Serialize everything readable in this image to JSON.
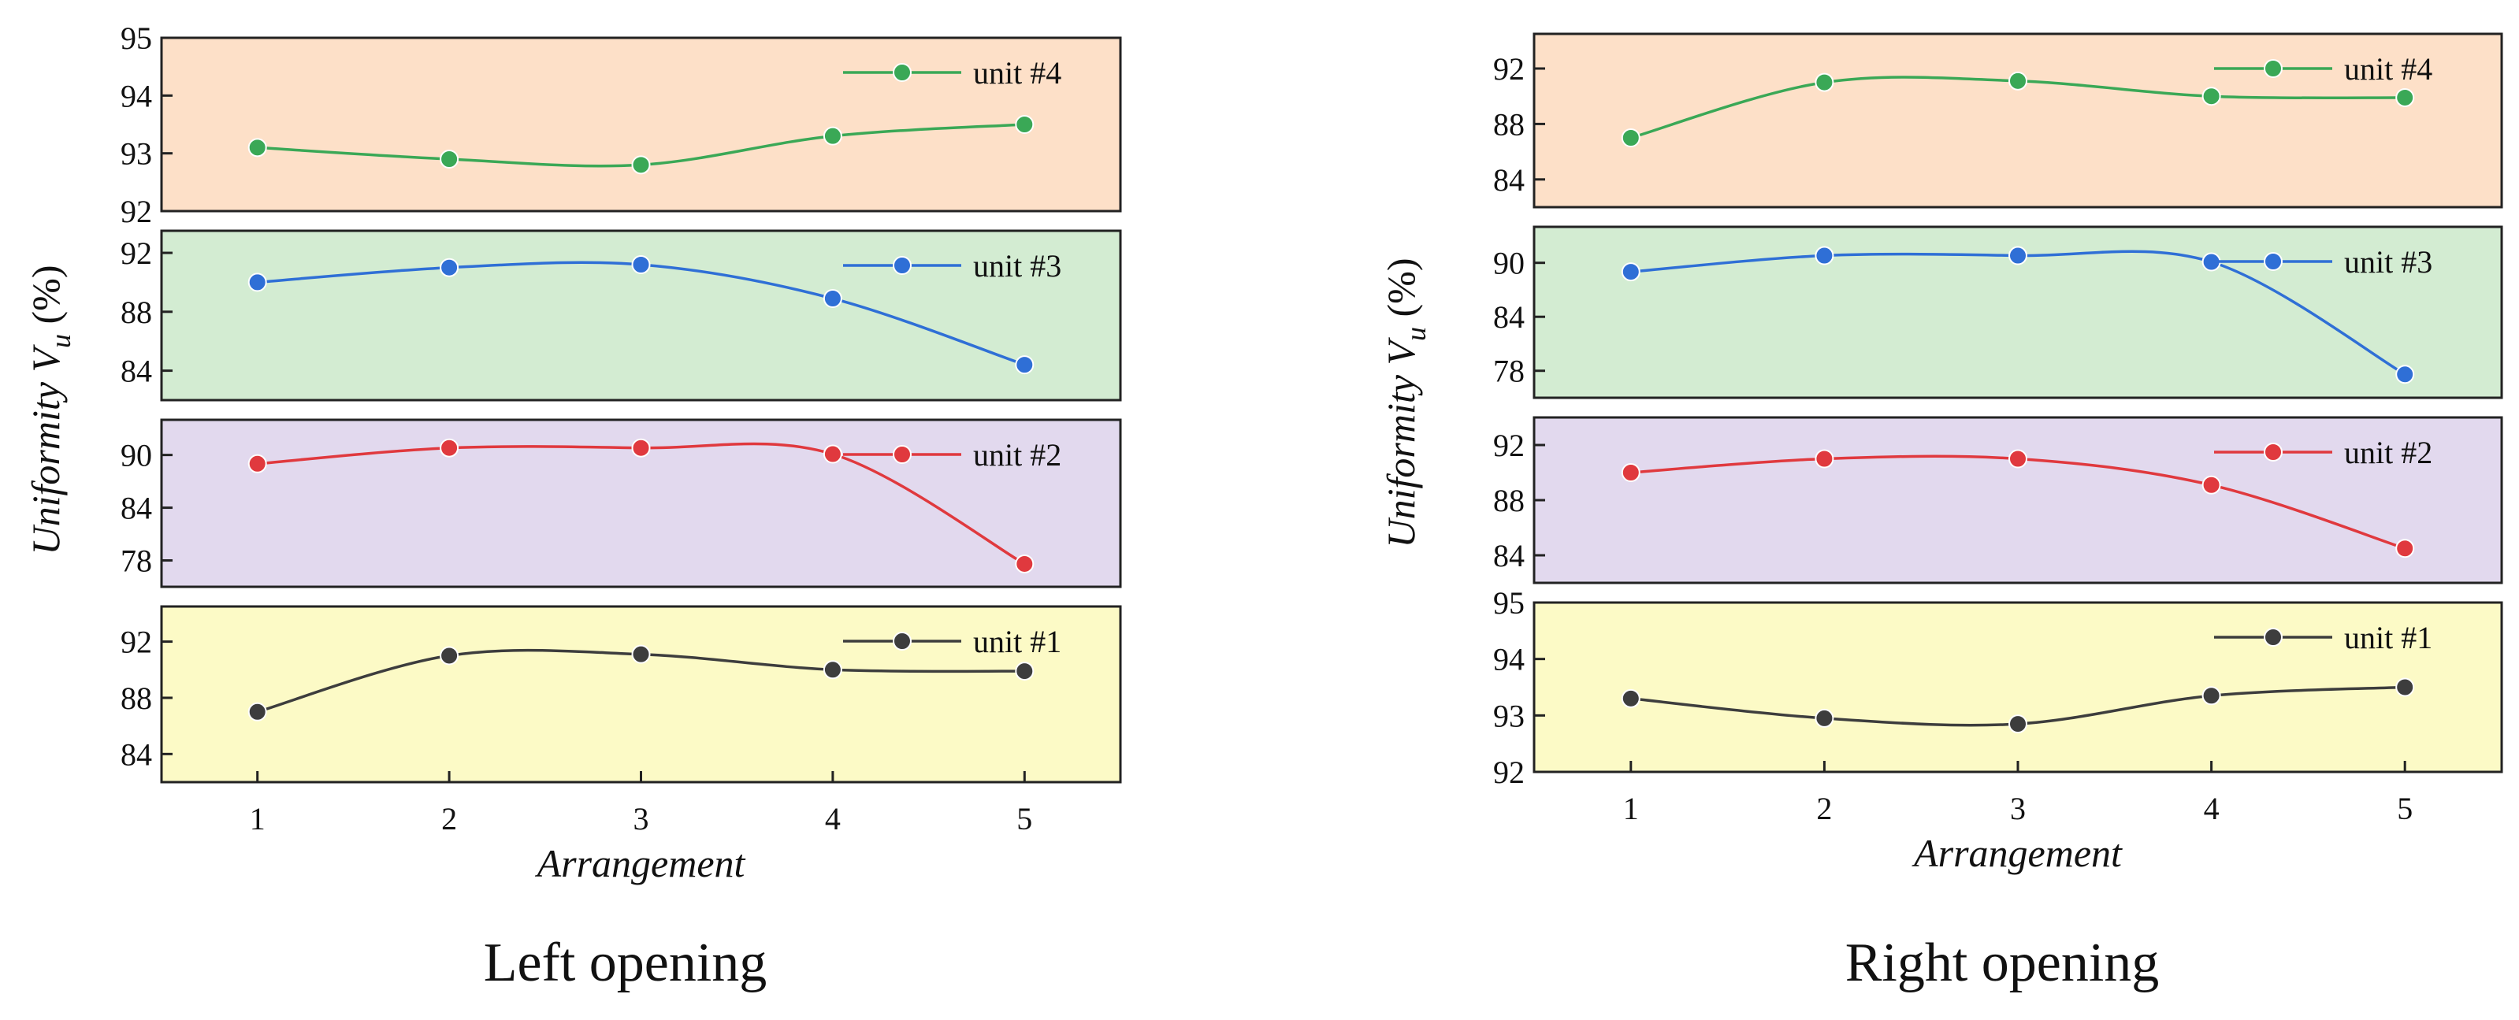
{
  "colors": {
    "unit4": "#3aa856",
    "unit3": "#2f6fd6",
    "unit2": "#e0393e",
    "unit1": "#3d3d3d",
    "bg_orange": "#fde0c8",
    "bg_green": "#d3ecd2",
    "bg_purple": "#e2d9ee",
    "bg_yellow": "#fcfac6"
  },
  "chart_data": [
    {
      "type": "line",
      "caption": "Left opening",
      "xlabel": "Arrangement",
      "ylabel_main": "Uniformity V",
      "ylabel_sub": "u",
      "ylabel_unit": " (%)",
      "x": [
        1,
        2,
        3,
        4,
        5
      ],
      "xlim": [
        0.5,
        5.5
      ],
      "x_ticks": [
        "1",
        "2",
        "3",
        "4",
        "5"
      ],
      "panels": [
        {
          "series": "unit #4",
          "color_key": "unit4",
          "bg_key": "bg_orange",
          "ylim": [
            92,
            95
          ],
          "y_ticks": [
            92,
            93,
            94,
            95
          ],
          "y_tick_labels": [
            "92",
            "93",
            "94",
            "95"
          ],
          "values": [
            93.1,
            92.9,
            92.8,
            93.3,
            93.5
          ]
        },
        {
          "series": "unit #3",
          "color_key": "unit3",
          "bg_key": "bg_green",
          "ylim": [
            82,
            93.5
          ],
          "y_ticks": [
            84,
            88,
            92
          ],
          "y_tick_labels": [
            "84",
            "88",
            "92"
          ],
          "values": [
            90.0,
            91.0,
            91.2,
            88.9,
            84.4
          ]
        },
        {
          "series": "unit #2",
          "color_key": "unit2",
          "bg_key": "bg_purple",
          "ylim": [
            75,
            94
          ],
          "y_ticks": [
            78,
            84,
            90
          ],
          "y_tick_labels": [
            "78",
            "84",
            "90"
          ],
          "values": [
            89.0,
            90.8,
            90.8,
            90.1,
            77.6
          ]
        },
        {
          "series": "unit #1",
          "color_key": "unit1",
          "bg_key": "bg_yellow",
          "ylim": [
            82,
            94.5
          ],
          "y_ticks": [
            84,
            88,
            92
          ],
          "y_tick_labels": [
            "84",
            "88",
            "92"
          ],
          "values": [
            87.0,
            91.0,
            91.1,
            90.0,
            89.9
          ]
        }
      ]
    },
    {
      "type": "line",
      "caption": "Right opening",
      "xlabel": "Arrangement",
      "ylabel_main": "Uniformity V",
      "ylabel_sub": "u",
      "ylabel_unit": " (%)",
      "x": [
        1,
        2,
        3,
        4,
        5
      ],
      "xlim": [
        0.5,
        5.5
      ],
      "x_ticks": [
        "1",
        "2",
        "3",
        "4",
        "5"
      ],
      "panels": [
        {
          "series": "unit #4",
          "color_key": "unit4",
          "bg_key": "bg_orange",
          "ylim": [
            82,
            94.5
          ],
          "y_ticks": [
            84,
            88,
            92
          ],
          "y_tick_labels": [
            "84",
            "88",
            "92"
          ],
          "values": [
            87.0,
            91.0,
            91.1,
            90.0,
            89.9
          ]
        },
        {
          "series": "unit #3",
          "color_key": "unit3",
          "bg_key": "bg_green",
          "ylim": [
            75,
            94
          ],
          "y_ticks": [
            78,
            84,
            90
          ],
          "y_tick_labels": [
            "78",
            "84",
            "90"
          ],
          "values": [
            89.0,
            90.8,
            90.8,
            90.1,
            77.6
          ]
        },
        {
          "series": "unit #2",
          "color_key": "unit2",
          "bg_key": "bg_purple",
          "ylim": [
            82,
            94
          ],
          "y_ticks": [
            84,
            88,
            92
          ],
          "y_tick_labels": [
            "84",
            "88",
            "92"
          ],
          "values": [
            90.0,
            91.0,
            91.0,
            89.1,
            84.5
          ]
        },
        {
          "series": "unit #1",
          "color_key": "unit1",
          "bg_key": "bg_yellow",
          "ylim": [
            92,
            95
          ],
          "y_ticks": [
            92,
            93,
            94,
            95
          ],
          "y_tick_labels": [
            "92",
            "93",
            "94",
            "95"
          ],
          "values": [
            93.3,
            92.95,
            92.85,
            93.35,
            93.5
          ]
        }
      ]
    }
  ]
}
